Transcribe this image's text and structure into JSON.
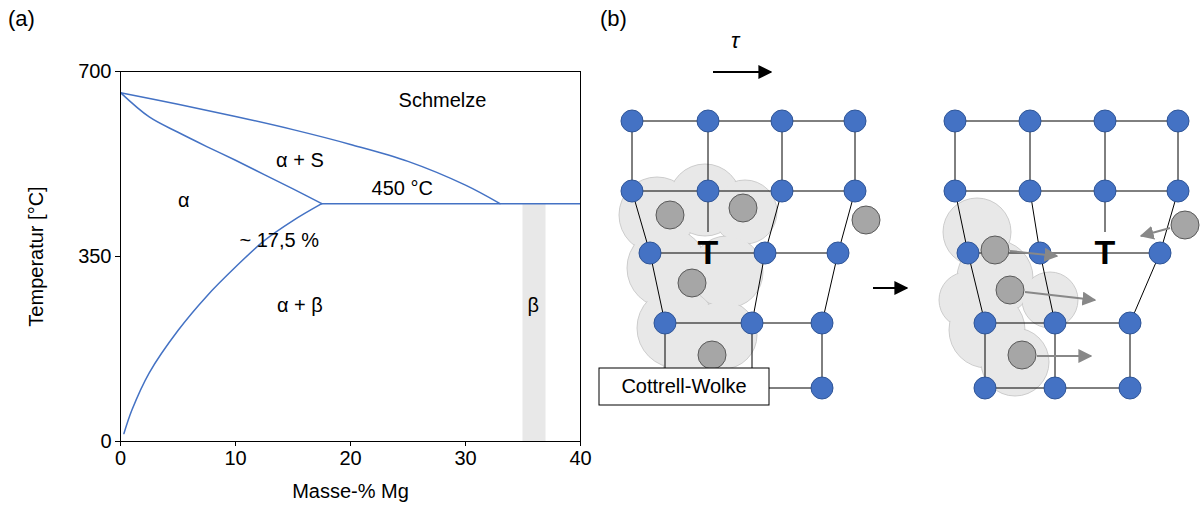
{
  "chart_data": {
    "type": "line",
    "panel_label": "(a)",
    "xlabel": "Masse-% Mg",
    "ylabel": "Temperatur [°C]",
    "xlim": [
      0,
      40
    ],
    "xticks": [
      0,
      10,
      20,
      30,
      40
    ],
    "ylim": [
      0,
      700
    ],
    "yticks": [
      0,
      350,
      700
    ],
    "grid": false,
    "series": [
      {
        "color": "#4472c4",
        "x": [
          0,
          5,
          10,
          15,
          20,
          25,
          30,
          33
        ],
        "values": [
          660,
          638,
          615,
          590,
          562,
          530,
          485,
          450
        ]
      },
      {
        "color": "#4472c4",
        "x": [
          0,
          2.5,
          5,
          7.5,
          10,
          12.5,
          15,
          17.5
        ],
        "values": [
          660,
          614,
          585,
          558,
          532,
          505,
          478,
          450
        ]
      },
      {
        "color": "#4472c4",
        "x": [
          0.3,
          1,
          2.5,
          5,
          7.5,
          10,
          12.5,
          15,
          17.5
        ],
        "values": [
          15,
          60,
          130,
          210,
          275,
          330,
          380,
          418,
          450
        ]
      },
      {
        "color": "#4472c4",
        "x": [
          17.5,
          40
        ],
        "values": [
          450,
          450
        ]
      }
    ],
    "beta_band": {
      "x1": 35,
      "x2": 37,
      "y1": 0,
      "y2": 450,
      "color": "#e8e8e8"
    },
    "annotations": [
      {
        "text": "Schmelze",
        "x": 28,
        "y": 645
      },
      {
        "text": "α + S",
        "x": 15.6,
        "y": 532
      },
      {
        "text": "450 °C",
        "x": 24.5,
        "y": 478
      },
      {
        "text": "α",
        "x": 5.5,
        "y": 455
      },
      {
        "text": "~ 17,5 %",
        "x": 13.8,
        "y": 380
      },
      {
        "text": "α + β",
        "x": 15.6,
        "y": 257
      },
      {
        "text": "β",
        "x": 35.9,
        "y": 257
      }
    ]
  },
  "diagram": {
    "panel_label": "(b)",
    "shear_stress": "τ",
    "dislocation_symbol": "T",
    "cloud_label": "Cottrell-Wolke"
  }
}
